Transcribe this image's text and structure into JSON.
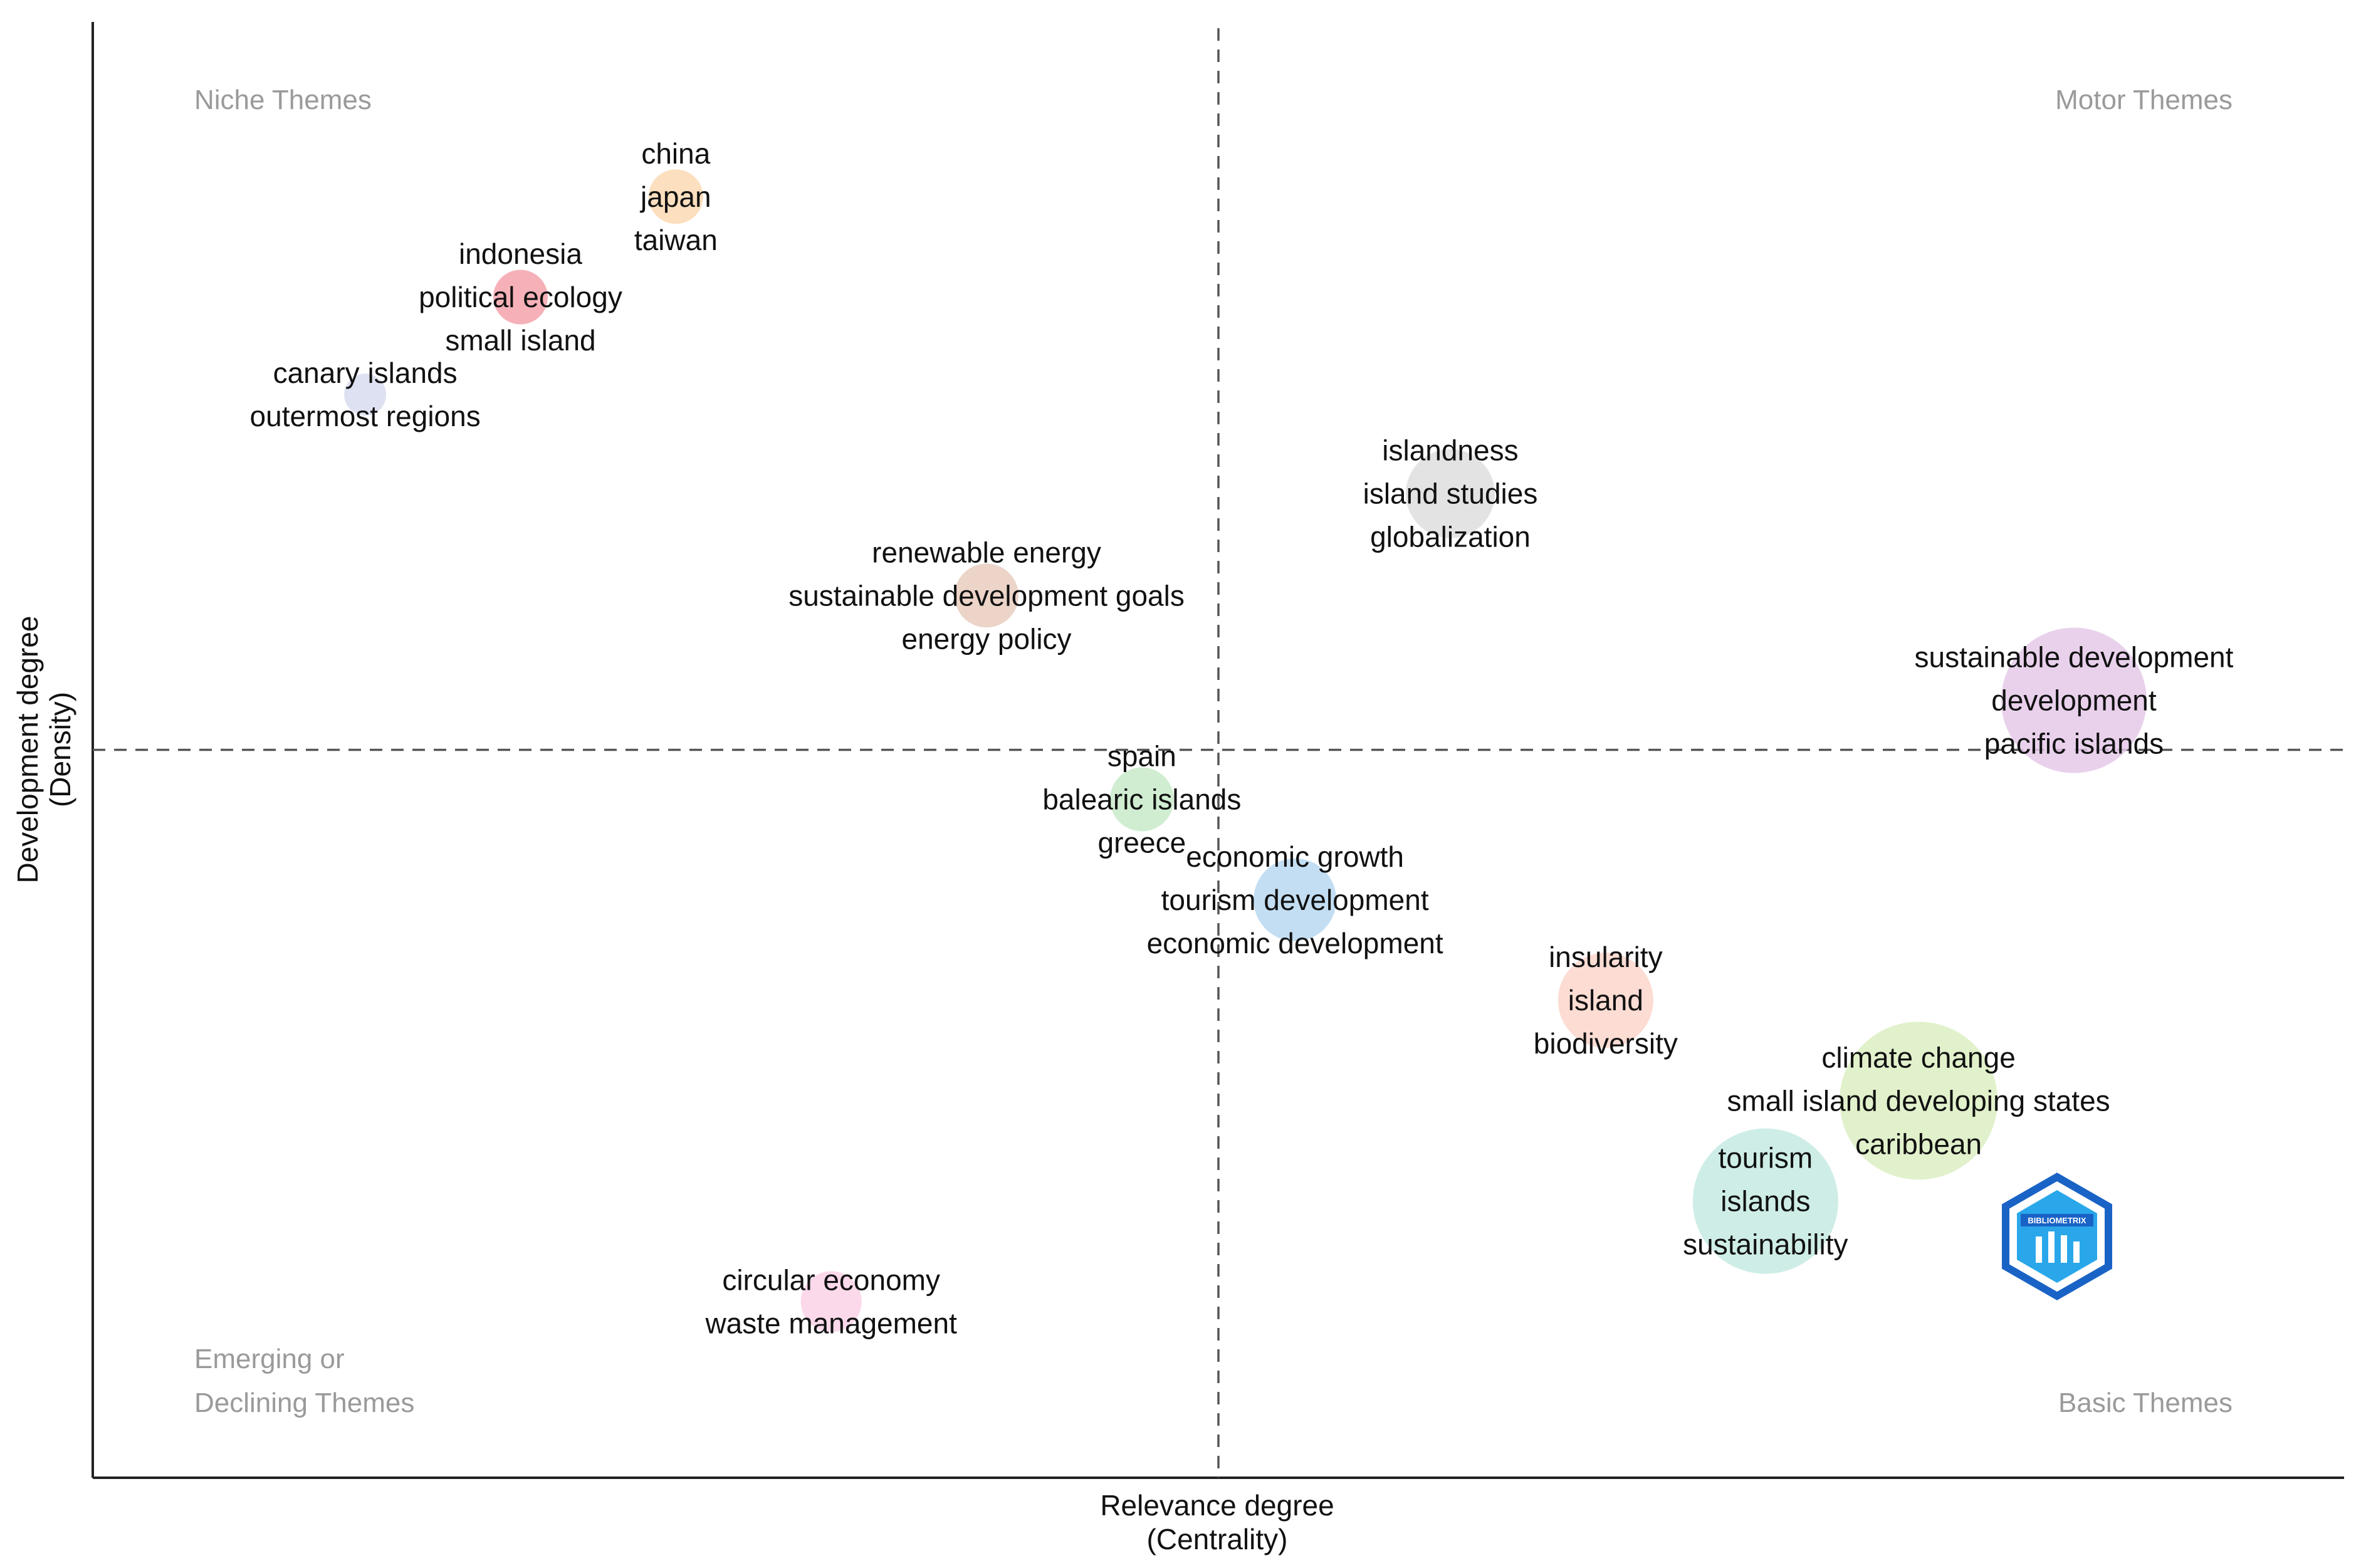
{
  "chart_data": {
    "type": "scatter",
    "subtype": "thematic-map",
    "xlabel": [
      "Relevance degree",
      "(Centrality)"
    ],
    "ylabel": [
      "Development degree",
      "(Density)"
    ],
    "xlim": [
      0,
      1
    ],
    "ylim": [
      0,
      1
    ],
    "x_ref": 0.5,
    "y_ref": 0.5,
    "grid": false,
    "quadrant_labels": {
      "top_left": [
        "Niche Themes"
      ],
      "top_right": [
        "Motor Themes"
      ],
      "bottom_left": [
        "Emerging or",
        "Declining Themes"
      ],
      "bottom_right": [
        "Basic Themes"
      ]
    },
    "clusters": [
      {
        "terms": [
          "china",
          "japan",
          "taiwan"
        ],
        "x": 0.259,
        "y": 0.88,
        "size": 0.11,
        "color": "#fbd9b3"
      },
      {
        "terms": [
          "indonesia",
          "political ecology",
          "small island"
        ],
        "x": 0.19,
        "y": 0.811,
        "size": 0.11,
        "color": "#f4a3ac"
      },
      {
        "terms": [
          "canary islands",
          "outermost regions"
        ],
        "x": 0.121,
        "y": 0.744,
        "size": 0.07,
        "color": "#d8dcef"
      },
      {
        "terms": [
          "islandness",
          "island studies",
          "globalization"
        ],
        "x": 0.603,
        "y": 0.676,
        "size": 0.22,
        "color": "#dedede"
      },
      {
        "terms": [
          "renewable energy",
          "sustainable development goals",
          "energy policy"
        ],
        "x": 0.397,
        "y": 0.606,
        "size": 0.14,
        "color": "#e9cdbf"
      },
      {
        "terms": [
          "sustainable development",
          "development",
          "pacific islands"
        ],
        "x": 0.88,
        "y": 0.534,
        "size": 0.4,
        "color": "#e5c9e9"
      },
      {
        "terms": [
          "spain",
          "balearic islands",
          "greece"
        ],
        "x": 0.466,
        "y": 0.466,
        "size": 0.14,
        "color": "#c8eac9"
      },
      {
        "terms": [
          "economic growth",
          "tourism development",
          "economic development"
        ],
        "x": 0.534,
        "y": 0.397,
        "size": 0.2,
        "color": "#b9d8f1"
      },
      {
        "terms": [
          "insularity",
          "island",
          "biodiversity"
        ],
        "x": 0.672,
        "y": 0.328,
        "size": 0.24,
        "color": "#fbd6cb"
      },
      {
        "terms": [
          "climate change",
          "small island developing states",
          "caribbean"
        ],
        "x": 0.811,
        "y": 0.259,
        "size": 0.44,
        "color": "#dcefc2"
      },
      {
        "terms": [
          "tourism",
          "islands",
          "sustainability"
        ],
        "x": 0.743,
        "y": 0.19,
        "size": 0.4,
        "color": "#c6eae3"
      },
      {
        "terms": [
          "circular economy",
          "waste management"
        ],
        "x": 0.328,
        "y": 0.121,
        "size": 0.13,
        "color": "#fad1e6"
      }
    ]
  },
  "logo": {
    "name": "bibliometrix-logo",
    "text": "BIBLIOMETRIX",
    "colors": [
      "#1a63c6",
      "#29a7ea"
    ]
  }
}
